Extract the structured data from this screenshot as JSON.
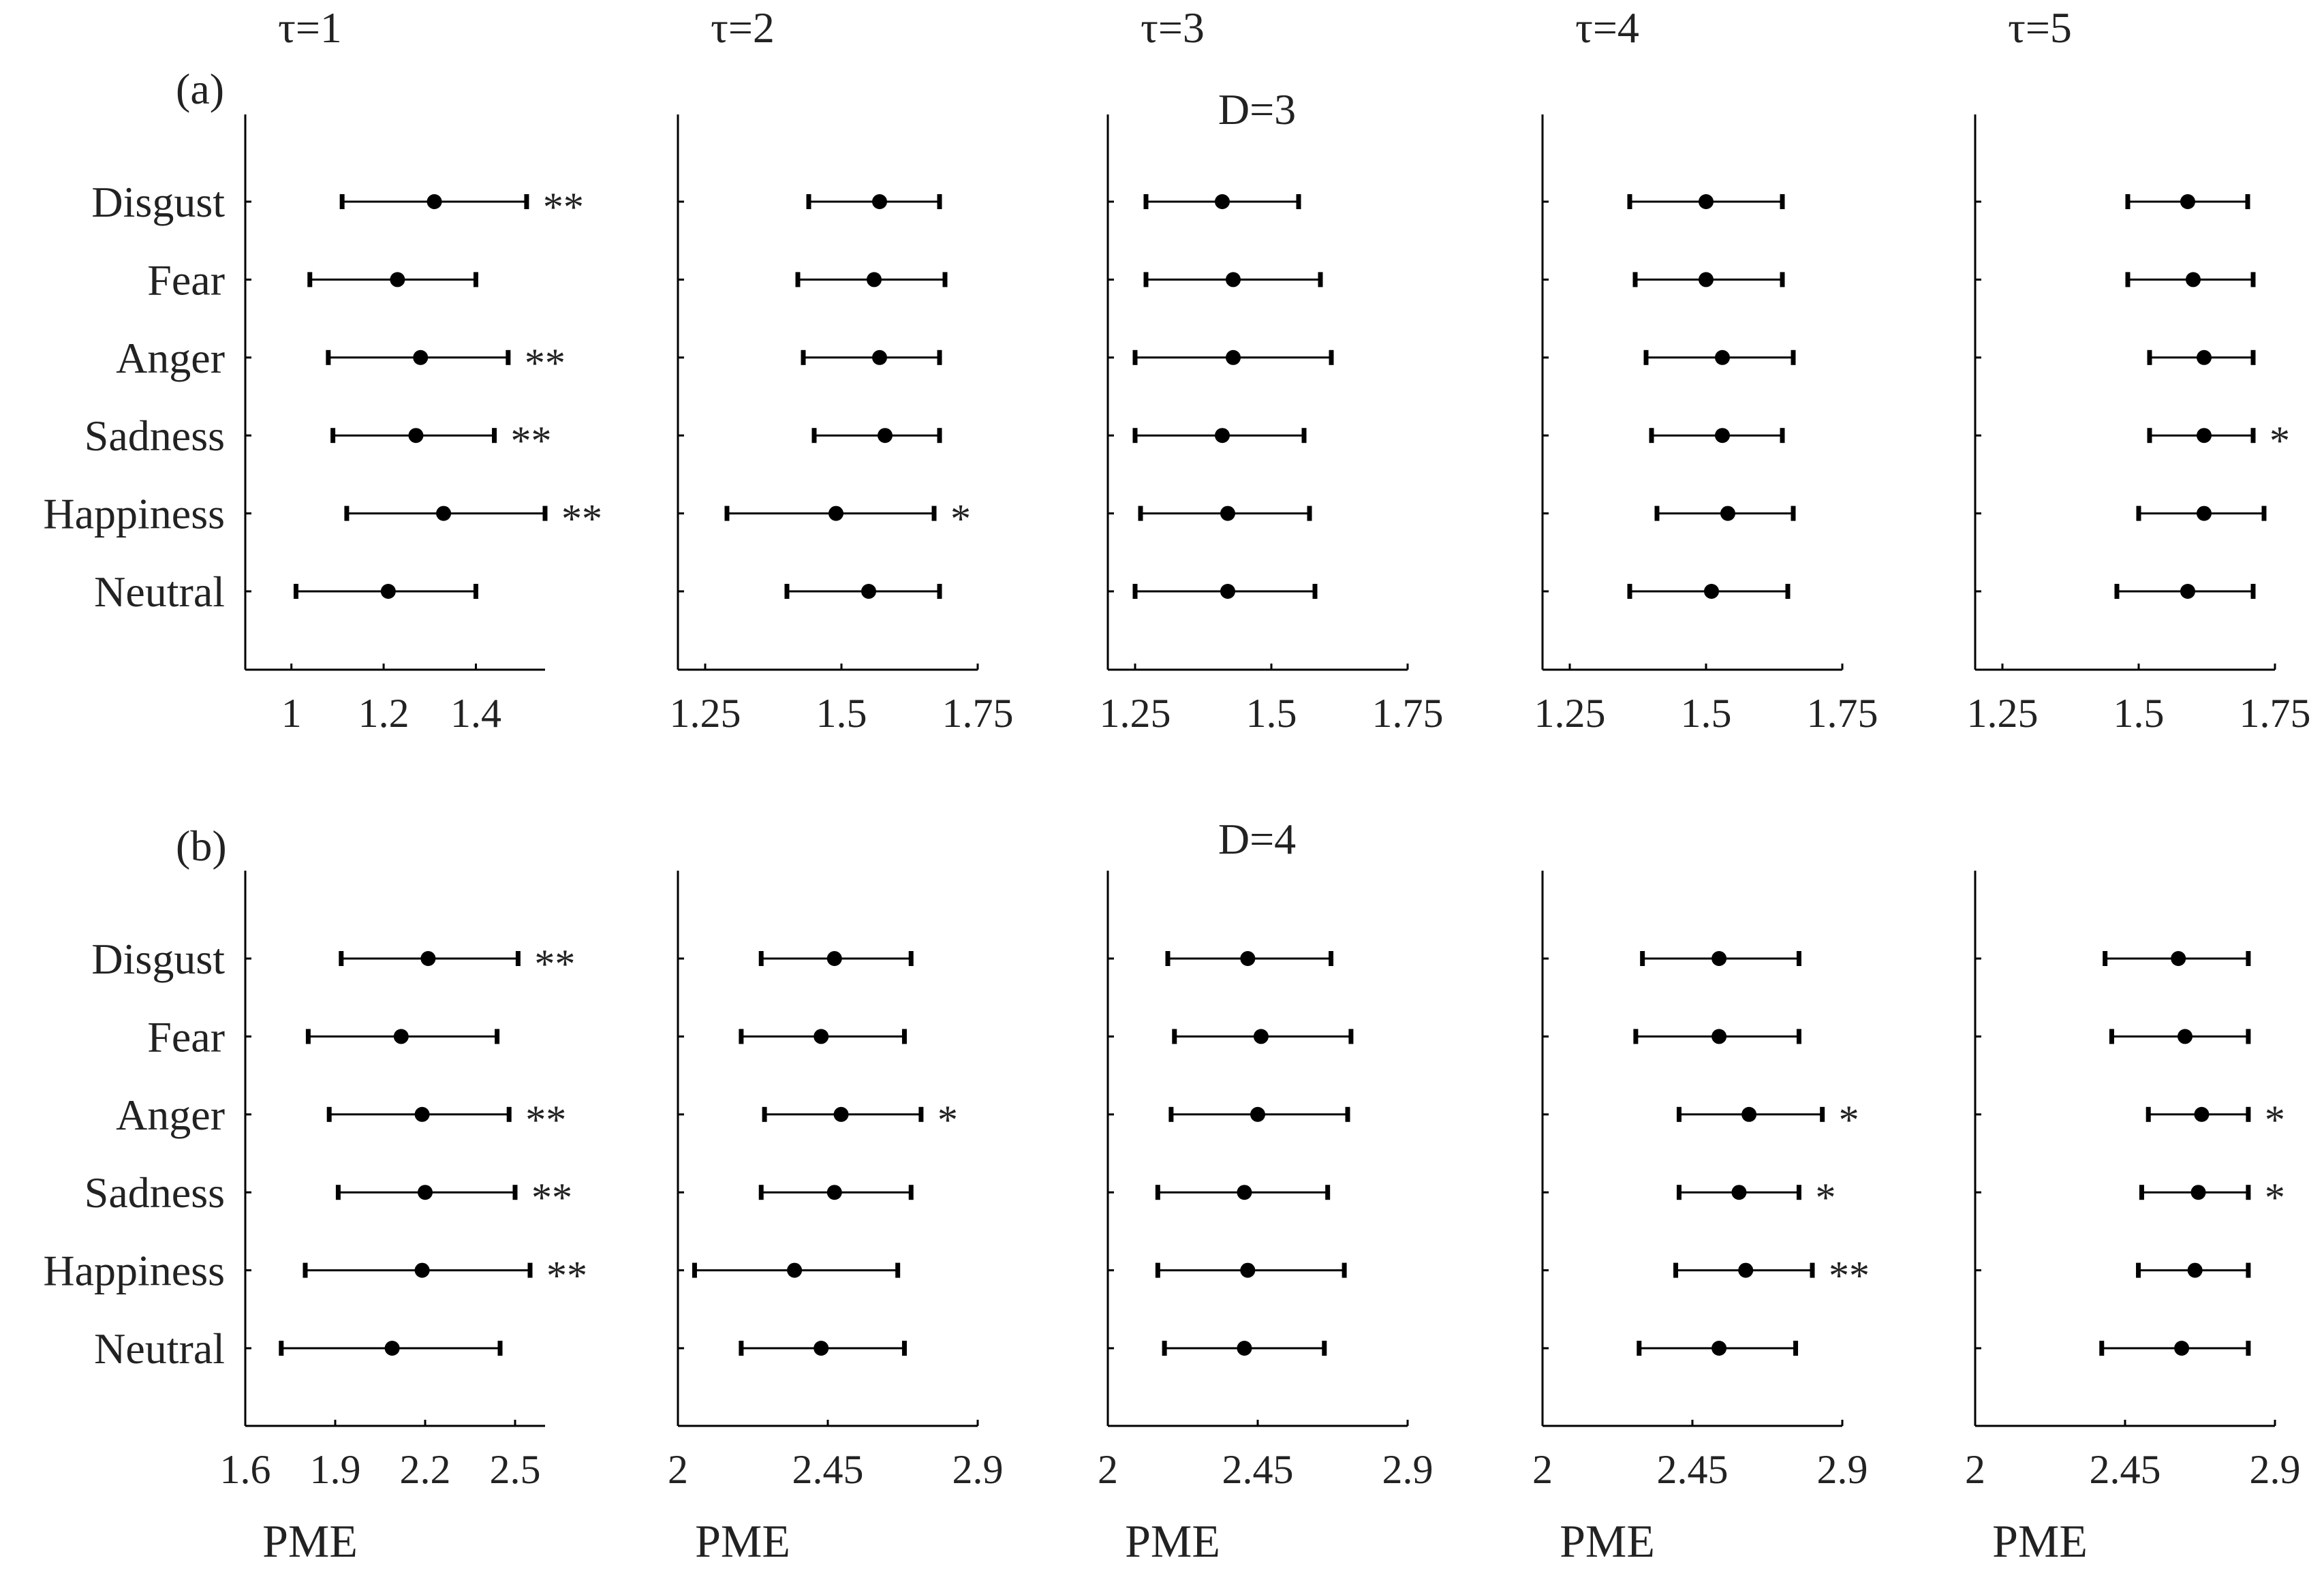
{
  "figure": {
    "categories": [
      "Disgust",
      "Fear",
      "Anger",
      "Sadness",
      "Happiness",
      "Neutral"
    ],
    "x_label": "PME",
    "columns": [
      "τ=1",
      "τ=2",
      "τ=3",
      "τ=4",
      "τ=5"
    ],
    "colors": {
      "axis": "#000000",
      "text": "#222222",
      "marker": "#000000"
    }
  },
  "chart_data": [
    {
      "type": "errorbar",
      "panel": "(a)",
      "row_title": "D=3",
      "column_title": "τ=1",
      "tau": 1,
      "xlim": [
        0.9,
        1.55
      ],
      "xticks": [
        "1",
        "1.2",
        "1.4"
      ],
      "xtick_values": [
        1,
        1.2,
        1.4
      ],
      "categories": [
        "Disgust",
        "Fear",
        "Anger",
        "Sadness",
        "Happiness",
        "Neutral"
      ],
      "mean": [
        1.31,
        1.23,
        1.28,
        1.27,
        1.33,
        1.21
      ],
      "lower": [
        1.11,
        1.04,
        1.08,
        1.09,
        1.12,
        1.01
      ],
      "upper": [
        1.51,
        1.4,
        1.47,
        1.44,
        1.55,
        1.4
      ],
      "significance": [
        "**",
        "",
        "**",
        "**",
        "**",
        ""
      ]
    },
    {
      "type": "errorbar",
      "panel": "(a)",
      "column_title": "τ=2",
      "tau": 2,
      "xlim": [
        1.2,
        1.75
      ],
      "xticks": [
        "1.25",
        "1.5",
        "1.75"
      ],
      "xtick_values": [
        1.25,
        1.5,
        1.75
      ],
      "categories": [
        "Disgust",
        "Fear",
        "Anger",
        "Sadness",
        "Happiness",
        "Neutral"
      ],
      "mean": [
        1.57,
        1.56,
        1.57,
        1.58,
        1.49,
        1.55
      ],
      "lower": [
        1.44,
        1.42,
        1.43,
        1.45,
        1.29,
        1.4
      ],
      "upper": [
        1.68,
        1.69,
        1.68,
        1.68,
        1.67,
        1.68
      ],
      "significance": [
        "",
        "",
        "",
        "",
        "*",
        ""
      ]
    },
    {
      "type": "errorbar",
      "panel": "(a)",
      "column_title": "τ=3",
      "tau": 3,
      "xlim": [
        1.2,
        1.75
      ],
      "xticks": [
        "1.25",
        "1.5",
        "1.75"
      ],
      "xtick_values": [
        1.25,
        1.5,
        1.75
      ],
      "categories": [
        "Disgust",
        "Fear",
        "Anger",
        "Sadness",
        "Happiness",
        "Neutral"
      ],
      "mean": [
        1.41,
        1.43,
        1.43,
        1.41,
        1.42,
        1.42
      ],
      "lower": [
        1.27,
        1.27,
        1.25,
        1.25,
        1.26,
        1.25
      ],
      "upper": [
        1.55,
        1.59,
        1.61,
        1.56,
        1.57,
        1.58
      ],
      "significance": [
        "",
        "",
        "",
        "",
        "",
        ""
      ]
    },
    {
      "type": "errorbar",
      "panel": "(a)",
      "column_title": "τ=4",
      "tau": 4,
      "xlim": [
        1.2,
        1.75
      ],
      "xticks": [
        "1.25",
        "1.5",
        "1.75"
      ],
      "xtick_values": [
        1.25,
        1.5,
        1.75
      ],
      "categories": [
        "Disgust",
        "Fear",
        "Anger",
        "Sadness",
        "Happiness",
        "Neutral"
      ],
      "mean": [
        1.5,
        1.5,
        1.53,
        1.53,
        1.54,
        1.51
      ],
      "lower": [
        1.36,
        1.37,
        1.39,
        1.4,
        1.41,
        1.36
      ],
      "upper": [
        1.64,
        1.64,
        1.66,
        1.64,
        1.66,
        1.65
      ],
      "significance": [
        "",
        "",
        "",
        "",
        "",
        ""
      ]
    },
    {
      "type": "errorbar",
      "panel": "(a)",
      "column_title": "τ=5",
      "tau": 5,
      "xlim": [
        1.2,
        1.75
      ],
      "xticks": [
        "1.25",
        "1.5",
        "1.75"
      ],
      "xtick_values": [
        1.25,
        1.5,
        1.75
      ],
      "categories": [
        "Disgust",
        "Fear",
        "Anger",
        "Sadness",
        "Happiness",
        "Neutral"
      ],
      "mean": [
        1.59,
        1.6,
        1.62,
        1.62,
        1.62,
        1.59
      ],
      "lower": [
        1.48,
        1.48,
        1.52,
        1.52,
        1.5,
        1.46
      ],
      "upper": [
        1.7,
        1.71,
        1.71,
        1.71,
        1.73,
        1.71
      ],
      "significance": [
        "",
        "",
        "",
        "*",
        "",
        ""
      ]
    },
    {
      "type": "errorbar",
      "panel": "(b)",
      "row_title": "D=4",
      "column_title": "τ=1",
      "tau": 1,
      "xlim": [
        1.6,
        2.6
      ],
      "xticks": [
        "1.6",
        "1.9",
        "2.2",
        "2.5"
      ],
      "xtick_values": [
        1.6,
        1.9,
        2.2,
        2.5
      ],
      "x_label": "PME",
      "categories": [
        "Disgust",
        "Fear",
        "Anger",
        "Sadness",
        "Happiness",
        "Neutral"
      ],
      "mean": [
        2.21,
        2.12,
        2.19,
        2.2,
        2.19,
        2.09
      ],
      "lower": [
        1.92,
        1.81,
        1.88,
        1.91,
        1.8,
        1.72
      ],
      "upper": [
        2.51,
        2.44,
        2.48,
        2.5,
        2.55,
        2.45
      ],
      "significance": [
        "**",
        "",
        "**",
        "**",
        "**",
        ""
      ]
    },
    {
      "type": "errorbar",
      "panel": "(b)",
      "column_title": "τ=2",
      "tau": 2,
      "xlim": [
        2.0,
        2.9
      ],
      "xticks": [
        "2",
        "2.45",
        "2.9"
      ],
      "xtick_values": [
        2.0,
        2.45,
        2.9
      ],
      "x_label": "PME",
      "categories": [
        "Disgust",
        "Fear",
        "Anger",
        "Sadness",
        "Happiness",
        "Neutral"
      ],
      "mean": [
        2.47,
        2.43,
        2.49,
        2.47,
        2.35,
        2.43
      ],
      "lower": [
        2.25,
        2.19,
        2.26,
        2.25,
        2.05,
        2.19
      ],
      "upper": [
        2.7,
        2.68,
        2.73,
        2.7,
        2.66,
        2.68
      ],
      "significance": [
        "",
        "",
        "*",
        "",
        "",
        ""
      ]
    },
    {
      "type": "errorbar",
      "panel": "(b)",
      "column_title": "τ=3",
      "tau": 3,
      "xlim": [
        2.0,
        2.9
      ],
      "xticks": [
        "2",
        "2.45",
        "2.9"
      ],
      "xtick_values": [
        2.0,
        2.45,
        2.9
      ],
      "x_label": "PME",
      "categories": [
        "Disgust",
        "Fear",
        "Anger",
        "Sadness",
        "Happiness",
        "Neutral"
      ],
      "mean": [
        2.42,
        2.46,
        2.45,
        2.41,
        2.42,
        2.41
      ],
      "lower": [
        2.18,
        2.2,
        2.19,
        2.15,
        2.15,
        2.17
      ],
      "upper": [
        2.67,
        2.73,
        2.72,
        2.66,
        2.71,
        2.65
      ],
      "significance": [
        "",
        "",
        "",
        "",
        "",
        ""
      ]
    },
    {
      "type": "errorbar",
      "panel": "(b)",
      "column_title": "τ=4",
      "tau": 4,
      "xlim": [
        2.0,
        2.9
      ],
      "xticks": [
        "2",
        "2.45",
        "2.9"
      ],
      "xtick_values": [
        2.0,
        2.45,
        2.9
      ],
      "x_label": "PME",
      "categories": [
        "Disgust",
        "Fear",
        "Anger",
        "Sadness",
        "Happiness",
        "Neutral"
      ],
      "mean": [
        2.53,
        2.53,
        2.62,
        2.59,
        2.61,
        2.53
      ],
      "lower": [
        2.3,
        2.28,
        2.41,
        2.41,
        2.4,
        2.29
      ],
      "upper": [
        2.77,
        2.77,
        2.84,
        2.77,
        2.81,
        2.76
      ],
      "significance": [
        "",
        "",
        "*",
        "*",
        "**",
        ""
      ]
    },
    {
      "type": "errorbar",
      "panel": "(b)",
      "column_title": "τ=5",
      "tau": 5,
      "xlim": [
        2.0,
        2.9
      ],
      "xticks": [
        "2",
        "2.45",
        "2.9"
      ],
      "xtick_values": [
        2.0,
        2.45,
        2.9
      ],
      "x_label": "PME",
      "categories": [
        "Disgust",
        "Fear",
        "Anger",
        "Sadness",
        "Happiness",
        "Neutral"
      ],
      "mean": [
        2.61,
        2.63,
        2.68,
        2.67,
        2.66,
        2.62
      ],
      "lower": [
        2.39,
        2.41,
        2.52,
        2.5,
        2.49,
        2.38
      ],
      "upper": [
        2.82,
        2.82,
        2.82,
        2.82,
        2.82,
        2.82
      ],
      "significance": [
        "",
        "",
        "*",
        "*",
        "",
        ""
      ]
    }
  ]
}
